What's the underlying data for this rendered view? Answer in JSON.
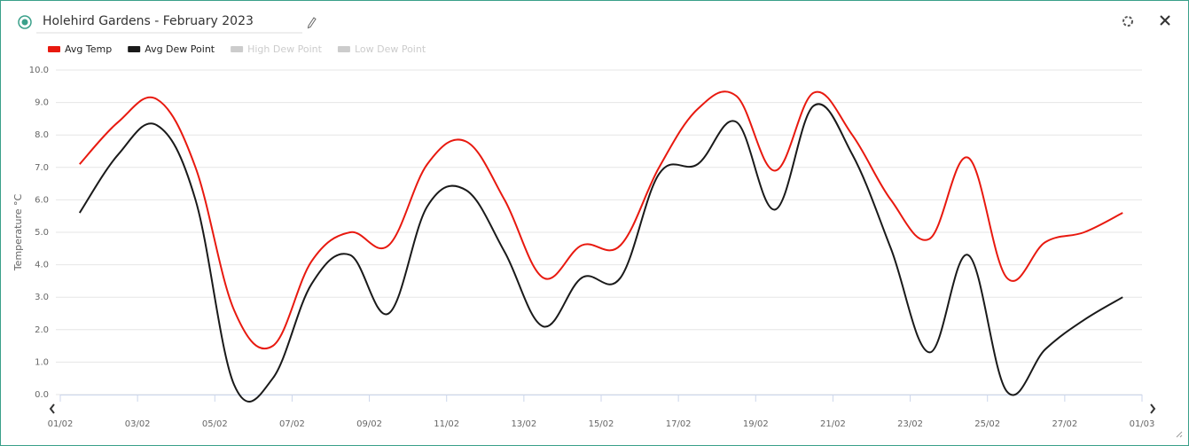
{
  "header": {
    "title": "Holehird Gardens - February 2023"
  },
  "chart_data": {
    "type": "line",
    "y_label": "Temperature °C",
    "x": [
      0.5,
      1.5,
      2.5,
      3.5,
      4.5,
      5.5,
      6.5,
      7.5,
      8.5,
      9.5,
      10.5,
      11.5,
      12.5,
      13.5,
      14.5,
      15.5,
      16.5,
      17.5,
      18.5,
      19.5,
      20.5,
      21.5,
      22.5,
      23.5,
      24.5,
      25.5,
      26.5,
      27.5
    ],
    "series": [
      {
        "name": "Avg Temp",
        "color": "#e8190f",
        "values": [
          7.1,
          8.4,
          9.1,
          7.0,
          2.6,
          1.5,
          4.1,
          5.0,
          4.6,
          7.1,
          7.8,
          6.0,
          3.6,
          4.6,
          4.6,
          7.0,
          8.8,
          9.2,
          6.9,
          9.3,
          8.0,
          6.0,
          4.8,
          7.3,
          3.6,
          4.7,
          5.0,
          5.6
        ]
      },
      {
        "name": "Avg Dew Point",
        "color": "#1a1a1a",
        "values": [
          5.6,
          7.4,
          8.3,
          6.0,
          0.3,
          0.5,
          3.4,
          4.3,
          2.5,
          5.8,
          6.3,
          4.4,
          2.1,
          3.6,
          3.6,
          6.8,
          7.1,
          8.4,
          5.7,
          8.9,
          7.4,
          4.5,
          1.3,
          4.3,
          0.1,
          1.4,
          2.3,
          3.0
        ]
      }
    ],
    "inactive_series": [
      {
        "name": "High Dew Point",
        "color": "#cccccc"
      },
      {
        "name": "Low Dew Point",
        "color": "#cccccc"
      }
    ],
    "xlim": [
      0,
      28
    ],
    "xticks": [
      {
        "value": 0,
        "label": "01/02"
      },
      {
        "value": 2,
        "label": "03/02"
      },
      {
        "value": 4,
        "label": "05/02"
      },
      {
        "value": 6,
        "label": "07/02"
      },
      {
        "value": 8,
        "label": "09/02"
      },
      {
        "value": 10,
        "label": "11/02"
      },
      {
        "value": 12,
        "label": "13/02"
      },
      {
        "value": 14,
        "label": "15/02"
      },
      {
        "value": 16,
        "label": "17/02"
      },
      {
        "value": 18,
        "label": "19/02"
      },
      {
        "value": 20,
        "label": "21/02"
      },
      {
        "value": 22,
        "label": "23/02"
      },
      {
        "value": 24,
        "label": "25/02"
      },
      {
        "value": 26,
        "label": "27/02"
      },
      {
        "value": 28,
        "label": "01/03"
      }
    ],
    "ylim": [
      0,
      10
    ],
    "yticks": [
      {
        "value": 0,
        "label": "0.0"
      },
      {
        "value": 1,
        "label": "1.0"
      },
      {
        "value": 2,
        "label": "2.0"
      },
      {
        "value": 3,
        "label": "3.0"
      },
      {
        "value": 4,
        "label": "4.0"
      },
      {
        "value": 5,
        "label": "5.0"
      },
      {
        "value": 6,
        "label": "6.0"
      },
      {
        "value": 7,
        "label": "7.0"
      },
      {
        "value": 8,
        "label": "8.0"
      },
      {
        "value": 9,
        "label": "9.0"
      },
      {
        "value": 10,
        "label": "10.0"
      }
    ],
    "grid": true
  }
}
